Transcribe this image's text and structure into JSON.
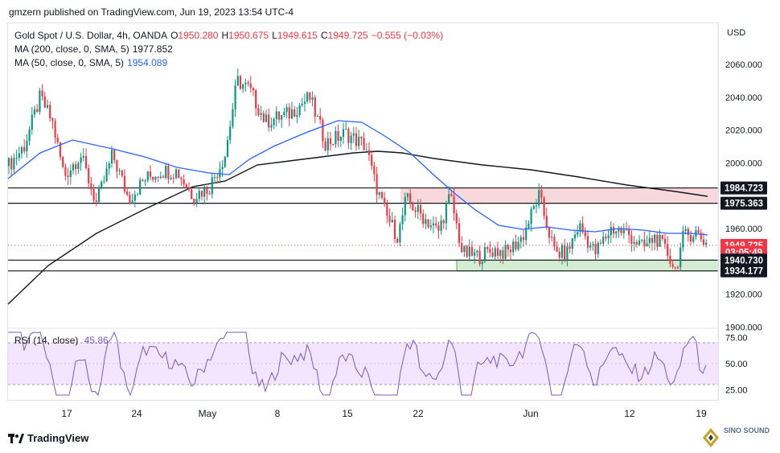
{
  "header": {
    "publisher": "gmzern published on TradingView.com, Jun 19, 2023 13:54 UTC-4"
  },
  "legend": {
    "symbol": "Gold Spot / U.S. Dollar, 4h, OANDA",
    "open_label": "O",
    "open": "1950.280",
    "high_label": "H",
    "high": "1950.675",
    "low_label": "L",
    "low": "1949.615",
    "close_label": "C",
    "close": "1949.725",
    "change": "−0.555 (−0.03%)",
    "ma200_label": "MA (200, close, 0, SMA, 5)",
    "ma200_value": "1977.852",
    "ma50_label": "MA (50, close, 0, SMA, 5)",
    "ma50_value": "1954.089",
    "rsi_label": "RSI (14, close)",
    "rsi_value": "45.86"
  },
  "price_axis": {
    "currency": "USD",
    "ticks": [
      "2060.000",
      "2040.000",
      "2020.000",
      "2000.000",
      "1960.000",
      "1920.000",
      "1900.000"
    ],
    "tick_values": [
      2060,
      2040,
      2020,
      2000,
      1960,
      1920,
      1900
    ]
  },
  "price_labels": [
    {
      "text": "1984.723",
      "value": 1984.723,
      "style": "dark"
    },
    {
      "text": "1975.363",
      "value": 1975.363,
      "style": "dark"
    },
    {
      "text": "1949.725",
      "value": 1949.725,
      "style": "red"
    },
    {
      "text": "03:05:49",
      "value": 1945.6,
      "style": "red"
    },
    {
      "text": "1940.730",
      "value": 1940.73,
      "style": "dark"
    },
    {
      "text": "1934.177",
      "value": 1934.177,
      "style": "dark"
    }
  ],
  "rsi_axis": {
    "ticks": [
      "75.00",
      "50.00",
      "25.00"
    ],
    "tick_values": [
      75,
      50,
      25
    ]
  },
  "time_axis": {
    "labels": [
      "17",
      "24",
      "May",
      "8",
      "15",
      "22",
      "Jun",
      "12",
      "19"
    ]
  },
  "zones": {
    "resistance": {
      "low": 1975.363,
      "high": 1984.723,
      "color": "#f7d9dc"
    },
    "support": {
      "low": 1934.177,
      "high": 1940.73,
      "color": "#d5ecd2"
    }
  },
  "colors": {
    "up": "#089981",
    "down": "#f23645",
    "ma50": "#2962ff",
    "ma200": "#131722",
    "rsi": "#7e57c2",
    "rsi_band": "#f3e5fd"
  },
  "footer": {
    "brand": "TradingView",
    "watermark": "SINO SOUND"
  }
}
